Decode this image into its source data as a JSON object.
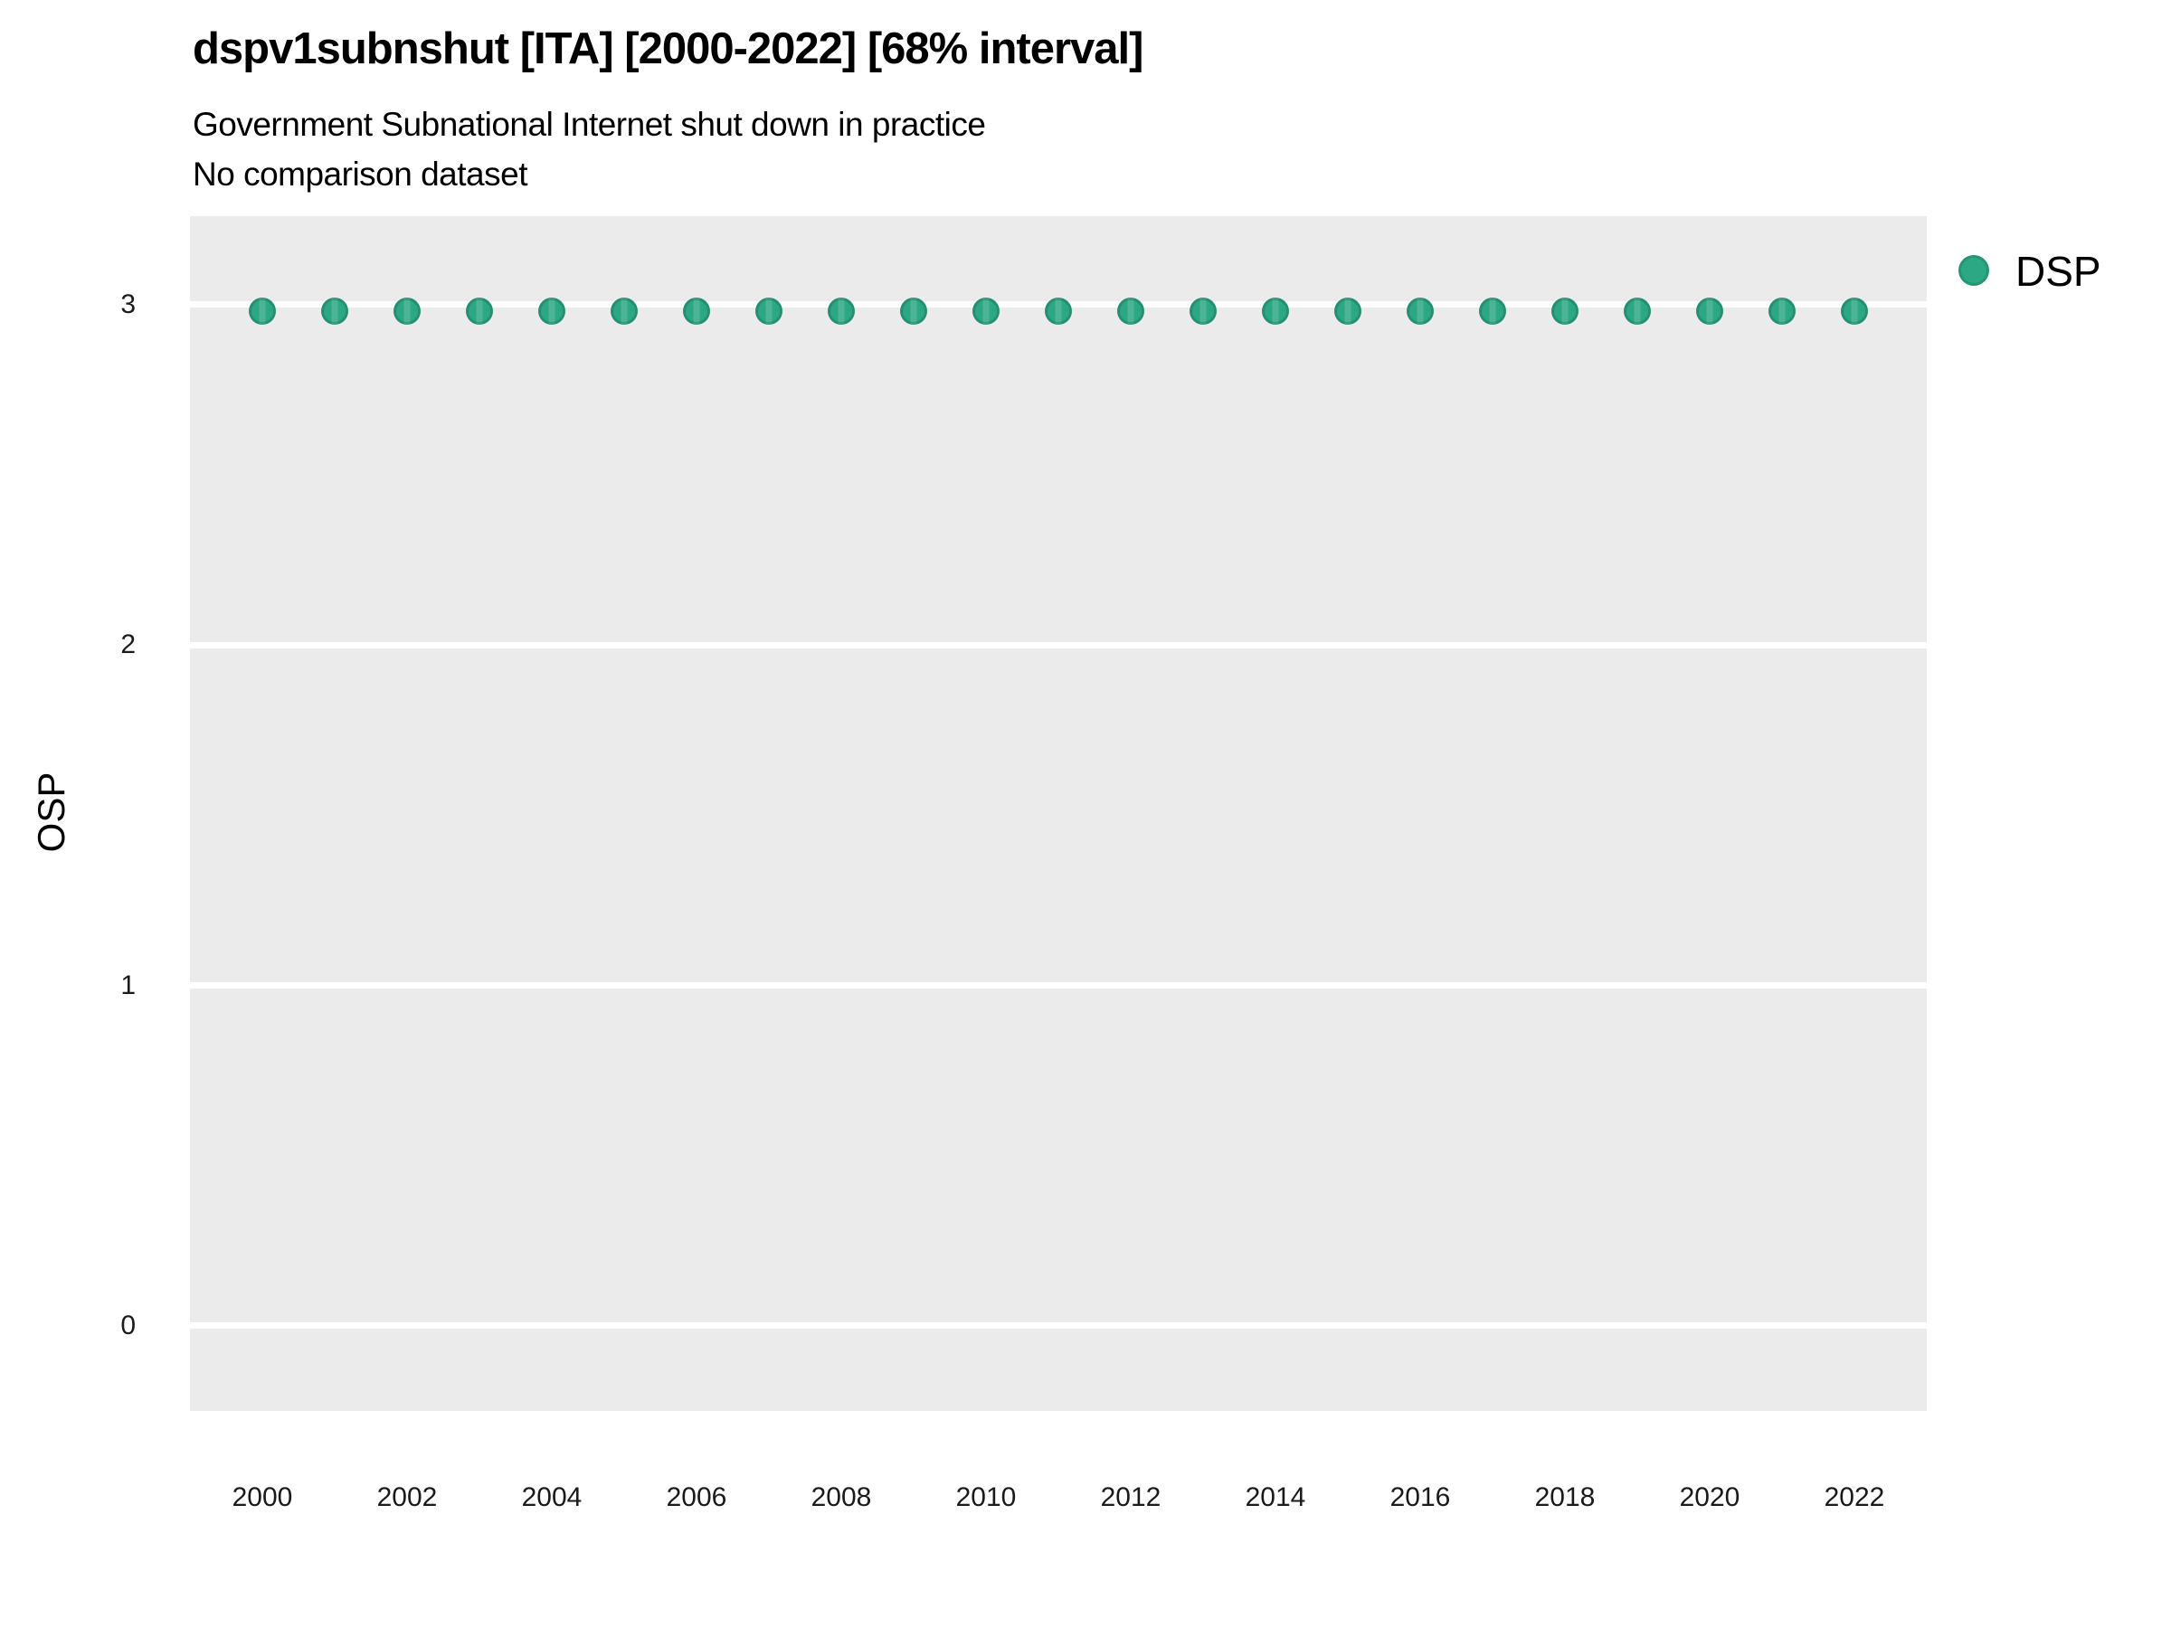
{
  "header": {
    "title": "dspv1subnshut [ITA] [2000-2022] [68% interval]",
    "subtitle": "Government Subnational Internet shut down in practice",
    "dataset_note": "No comparison dataset"
  },
  "legend": {
    "position": "right",
    "items": [
      {
        "label": "DSP",
        "color": "#2da884"
      }
    ]
  },
  "chart_data": {
    "type": "scatter",
    "title": "dspv1subnshut [ITA] [2000-2022] [68% interval]",
    "subtitle": "Government Subnational Internet shut down in practice",
    "note": "No comparison dataset",
    "xlabel": "",
    "ylabel": "OSP",
    "x": [
      2000,
      2001,
      2002,
      2003,
      2004,
      2005,
      2006,
      2007,
      2008,
      2009,
      2010,
      2011,
      2012,
      2013,
      2014,
      2015,
      2016,
      2017,
      2018,
      2019,
      2020,
      2021,
      2022
    ],
    "series": [
      {
        "name": "DSP",
        "color": "#2da884",
        "values": [
          2.98,
          2.98,
          2.98,
          2.98,
          2.98,
          2.98,
          2.98,
          2.98,
          2.98,
          2.98,
          2.98,
          2.98,
          2.98,
          2.98,
          2.98,
          2.98,
          2.98,
          2.98,
          2.98,
          2.98,
          2.98,
          2.98,
          2.98
        ]
      }
    ],
    "xlim": [
      1999,
      2023
    ],
    "ylim": [
      -0.25,
      3.26
    ],
    "xticks": [
      2000,
      2002,
      2004,
      2006,
      2008,
      2010,
      2012,
      2014,
      2016,
      2018,
      2020,
      2022
    ],
    "yticks": [
      0,
      1,
      2,
      3
    ],
    "grid": "horizontal major gridlines only, no vertical gridlines, no minor gridlines",
    "panel_bg": "#ebebeb",
    "grid_color": "#ffffff",
    "legend_position": "right"
  }
}
